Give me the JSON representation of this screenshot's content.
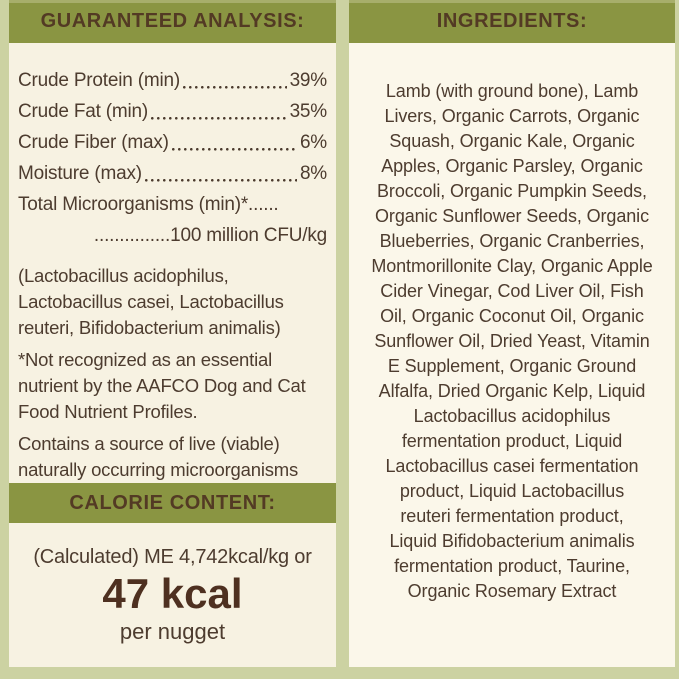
{
  "colors": {
    "header_bg": "#8a9542",
    "border": "#ccd2a2",
    "left_panel_bg": "#f7f2e2",
    "right_panel_bg": "#fbf7ea",
    "header_text": "#533a24",
    "body_text": "#4d3c2f",
    "calorie_accent_text": "#4e3020"
  },
  "left_panel": {
    "header": "GUARANTEED ANALYSIS:",
    "analysis_rows": [
      {
        "label": "Crude Protein (min)",
        "value": "39%"
      },
      {
        "label": "Crude Fat (min)",
        "value": "35%"
      },
      {
        "label": "Crude Fiber (max)",
        "value": "6%"
      },
      {
        "label": "Moisture (max)",
        "value": "8%"
      }
    ],
    "microorganisms_label": "Total Microorganisms (min)*......",
    "microorganisms_value": "...............100 million CFU/kg",
    "notes": [
      "(Lactobacillus acidophilus, Lactobacillus casei, Lactobacillus reuteri, Bifidobacterium animalis)",
      "*Not recognized as an essential nutrient by the AAFCO Dog and Cat Food Nutrient Profiles.",
      "Contains a source of live (viable) naturally occurring microorganisms"
    ],
    "calorie": {
      "header": "CALORIE CONTENT:",
      "line1": "(Calculated) ME 4,742kcal/kg or",
      "value": "47 kcal",
      "unit": "per nugget"
    }
  },
  "right_panel": {
    "header": "INGREDIENTS:",
    "ingredient_lines": [
      "Lamb (with ground bone), Lamb",
      "Livers, Organic Carrots, Organic",
      "Squash, Organic Kale, Organic",
      "Apples, Organic Parsley, Organic",
      "Broccoli, Organic Pumpkin Seeds,",
      "Organic Sunflower Seeds, Organic",
      "Blueberries, Organic Cranberries,",
      "Montmorillonite Clay, Organic Apple",
      "Cider Vinegar, Cod Liver Oil, Fish",
      "Oil, Organic Coconut Oil, Organic",
      "Sunflower Oil, Dried Yeast, Vitamin",
      "E Supplement, Organic Ground",
      "Alfalfa, Dried Organic Kelp, Liquid",
      "Lactobacillus acidophilus",
      "fermentation product, Liquid",
      "Lactobacillus casei fermentation",
      "product, Liquid Lactobacillus",
      "reuteri fermentation product,",
      "Liquid Bifidobacterium animalis",
      "fermentation product, Taurine,",
      "Organic Rosemary Extract"
    ]
  }
}
